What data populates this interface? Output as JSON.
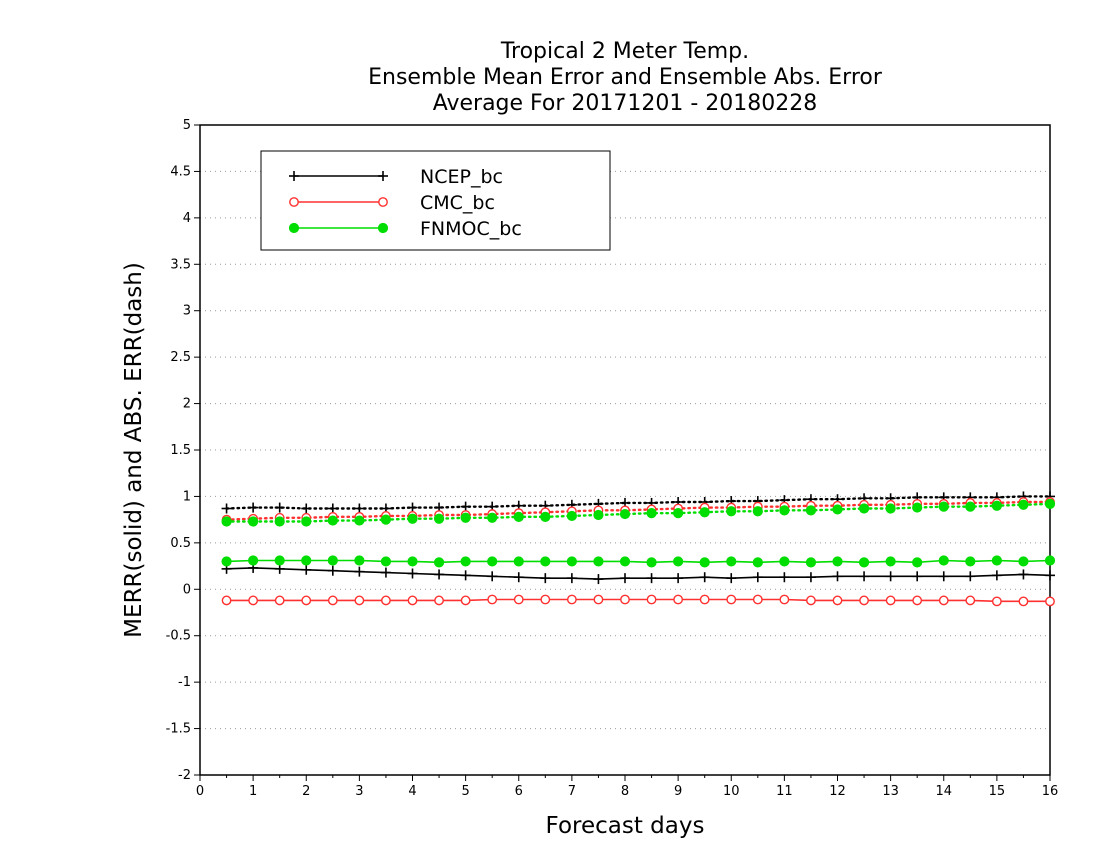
{
  "chart_data": {
    "type": "line",
    "title_lines": [
      "Tropical 2 Meter Temp.",
      "Ensemble Mean Error and Ensemble Abs. Error",
      "Average For 20171201 - 20180228"
    ],
    "xlabel": "Forecast days",
    "ylabel": "MERR(solid) and ABS. ERR(dash)",
    "xlim": [
      0,
      16
    ],
    "ylim": [
      -2,
      5
    ],
    "x_ticks": [
      "0",
      "1",
      "2",
      "3",
      "4",
      "5",
      "6",
      "7",
      "8",
      "9",
      "10",
      "11",
      "12",
      "13",
      "14",
      "15",
      "16"
    ],
    "y_ticks": [
      "-2",
      "-1.5",
      "-1",
      "-0.5",
      "0",
      "0.5",
      "1",
      "1.5",
      "2",
      "2.5",
      "3",
      "3.5",
      "4",
      "4.5",
      "5"
    ],
    "grid": "horizontal dotted",
    "legend_position": "top-left",
    "x": [
      0.5,
      1,
      1.5,
      2,
      2.5,
      3,
      3.5,
      4,
      4.5,
      5,
      5.5,
      6,
      6.5,
      7,
      7.5,
      8,
      8.5,
      9,
      9.5,
      10,
      10.5,
      11,
      11.5,
      12,
      12.5,
      13,
      13.5,
      14,
      14.5,
      15,
      15.5,
      16
    ],
    "series": [
      {
        "name": "NCEP_bc",
        "color": "#000000",
        "marker": "plus",
        "merr": [
          0.22,
          0.23,
          0.22,
          0.21,
          0.2,
          0.19,
          0.18,
          0.17,
          0.16,
          0.15,
          0.14,
          0.13,
          0.12,
          0.12,
          0.11,
          0.12,
          0.12,
          0.12,
          0.13,
          0.12,
          0.13,
          0.13,
          0.13,
          0.14,
          0.14,
          0.14,
          0.14,
          0.14,
          0.14,
          0.15,
          0.16,
          0.15
        ],
        "abs_err": [
          0.87,
          0.88,
          0.88,
          0.87,
          0.87,
          0.87,
          0.87,
          0.88,
          0.88,
          0.89,
          0.89,
          0.9,
          0.9,
          0.91,
          0.92,
          0.93,
          0.93,
          0.94,
          0.94,
          0.95,
          0.95,
          0.96,
          0.97,
          0.97,
          0.98,
          0.98,
          0.99,
          0.99,
          0.99,
          0.99,
          1.0,
          1.0
        ]
      },
      {
        "name": "CMC_bc",
        "color": "#ff3030",
        "marker": "open-circle",
        "merr": [
          -0.12,
          -0.12,
          -0.12,
          -0.12,
          -0.12,
          -0.12,
          -0.12,
          -0.12,
          -0.12,
          -0.12,
          -0.11,
          -0.11,
          -0.11,
          -0.11,
          -0.11,
          -0.11,
          -0.11,
          -0.11,
          -0.11,
          -0.11,
          -0.11,
          -0.11,
          -0.12,
          -0.12,
          -0.12,
          -0.12,
          -0.12,
          -0.12,
          -0.12,
          -0.13,
          -0.13,
          -0.13
        ],
        "abs_err": [
          0.75,
          0.76,
          0.77,
          0.77,
          0.78,
          0.78,
          0.79,
          0.79,
          0.8,
          0.8,
          0.81,
          0.82,
          0.83,
          0.84,
          0.85,
          0.85,
          0.86,
          0.87,
          0.88,
          0.88,
          0.89,
          0.89,
          0.9,
          0.9,
          0.91,
          0.91,
          0.92,
          0.92,
          0.93,
          0.93,
          0.94,
          0.94
        ]
      },
      {
        "name": "FNMOC_bc",
        "color": "#00dd00",
        "marker": "filled-circle",
        "merr": [
          0.3,
          0.31,
          0.31,
          0.31,
          0.31,
          0.31,
          0.3,
          0.3,
          0.29,
          0.3,
          0.3,
          0.3,
          0.3,
          0.3,
          0.3,
          0.3,
          0.29,
          0.3,
          0.29,
          0.3,
          0.29,
          0.3,
          0.29,
          0.3,
          0.29,
          0.3,
          0.29,
          0.31,
          0.3,
          0.31,
          0.3,
          0.31
        ],
        "abs_err": [
          0.73,
          0.73,
          0.73,
          0.73,
          0.74,
          0.74,
          0.75,
          0.76,
          0.76,
          0.77,
          0.77,
          0.78,
          0.78,
          0.79,
          0.8,
          0.81,
          0.82,
          0.82,
          0.83,
          0.84,
          0.84,
          0.85,
          0.85,
          0.86,
          0.87,
          0.87,
          0.88,
          0.89,
          0.89,
          0.9,
          0.91,
          0.92
        ]
      }
    ]
  }
}
